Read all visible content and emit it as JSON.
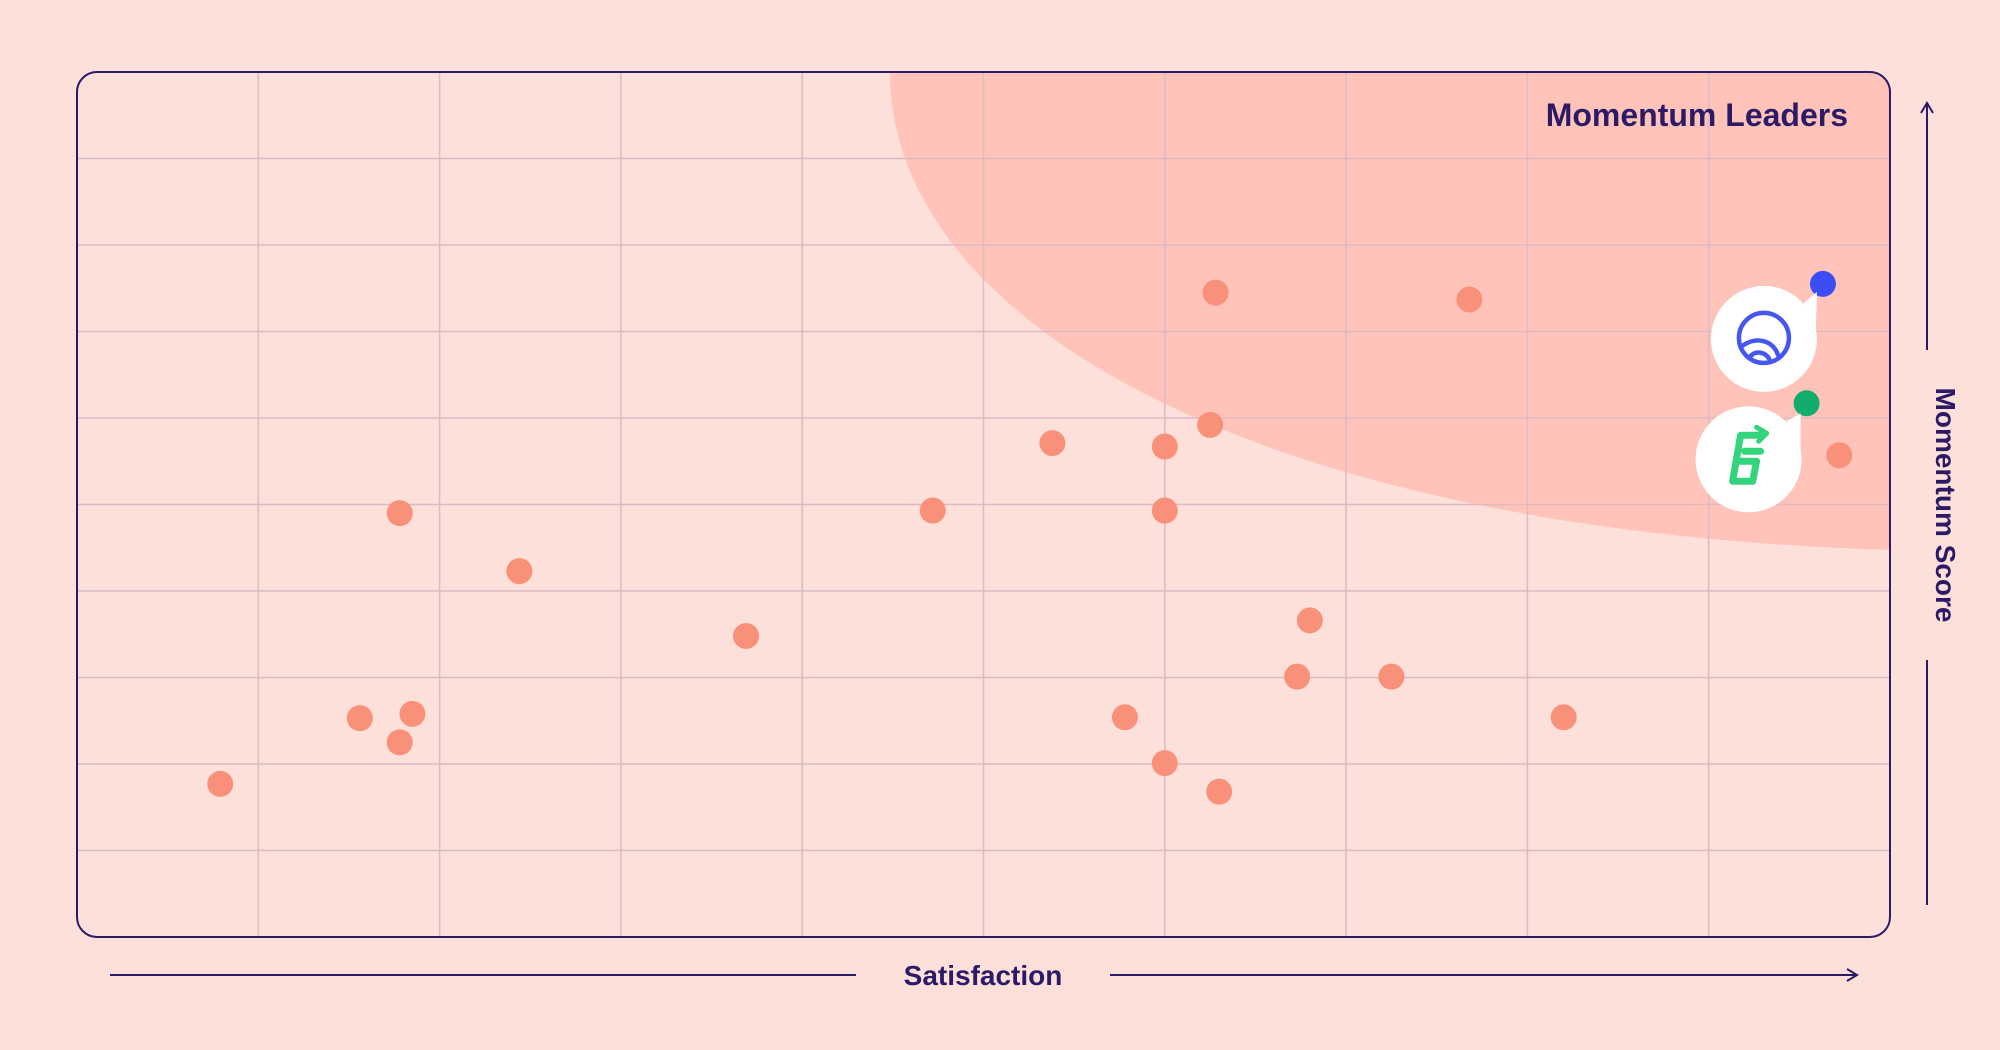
{
  "colors": {
    "background": "#fde0da",
    "plot_background": "#fee0da",
    "leaders_zone": "#ffc3b9",
    "grid": "#ddb9c2",
    "frame": "#2c1a66",
    "text": "#2c1a66",
    "dot": "#f9917a",
    "highlight_blue": "#3b4ef5",
    "highlight_green": "#12ac6c",
    "logo_blue": "#4656f0",
    "logo_green": "#32d47c",
    "badge": "#ffffff"
  },
  "zone_label": "Momentum Leaders",
  "chart_data": {
    "type": "scatter",
    "title": "",
    "xlabel": "Satisfaction",
    "ylabel": "Momentum Score",
    "xlim": [
      0,
      10
    ],
    "ylim": [
      0,
      10
    ],
    "grid": true,
    "x_ticks": [
      1,
      2,
      3,
      4,
      5,
      6,
      7,
      8,
      9
    ],
    "y_ticks": [
      1,
      2,
      3,
      4,
      5,
      6,
      7,
      8,
      9
    ],
    "points": [
      {
        "x": 6.28,
        "y": 7.45
      },
      {
        "x": 7.68,
        "y": 7.37
      },
      {
        "x": 6.25,
        "y": 5.92
      },
      {
        "x": 5.38,
        "y": 5.71
      },
      {
        "x": 6.0,
        "y": 5.67
      },
      {
        "x": 4.72,
        "y": 4.93
      },
      {
        "x": 6.0,
        "y": 4.93
      },
      {
        "x": 1.78,
        "y": 4.9
      },
      {
        "x": 2.44,
        "y": 4.23
      },
      {
        "x": 3.69,
        "y": 3.48
      },
      {
        "x": 6.8,
        "y": 3.66
      },
      {
        "x": 6.73,
        "y": 3.01
      },
      {
        "x": 7.25,
        "y": 3.01
      },
      {
        "x": 1.56,
        "y": 2.53
      },
      {
        "x": 1.85,
        "y": 2.58
      },
      {
        "x": 1.78,
        "y": 2.25
      },
      {
        "x": 5.78,
        "y": 2.54
      },
      {
        "x": 8.2,
        "y": 2.54
      },
      {
        "x": 6.0,
        "y": 2.01
      },
      {
        "x": 6.3,
        "y": 1.68
      },
      {
        "x": 0.79,
        "y": 1.77
      },
      {
        "x": 9.72,
        "y": 5.57
      }
    ],
    "highlighted": [
      {
        "x": 9.63,
        "y": 7.55,
        "color": "blue",
        "icon": "blue-globe-logo-icon"
      },
      {
        "x": 9.54,
        "y": 6.17,
        "color": "green",
        "icon": "green-s-logo-icon"
      }
    ]
  }
}
